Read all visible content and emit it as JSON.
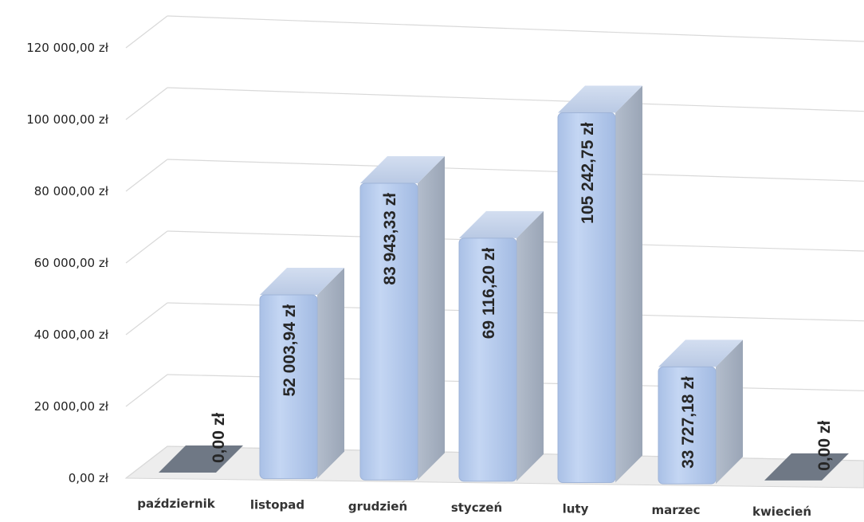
{
  "chart_data": {
    "type": "bar",
    "style": "3d-column",
    "title": "",
    "xlabel": "",
    "ylabel": "",
    "categories": [
      "październik",
      "listopad",
      "grudzień",
      "styczeń",
      "luty",
      "marzec",
      "kwiecień"
    ],
    "values": [
      0,
      52003.94,
      83943.33,
      69116.2,
      105242.75,
      33727.18,
      0
    ],
    "data_labels": [
      "0,00 zł",
      "52 003,94 zł",
      "83 943,33 zł",
      "69 116,20 zł",
      "105 242,75 zł",
      "33 727,18 zł",
      "0,00 zł"
    ],
    "y_ticks": [
      "0,00 zł",
      "20 000,00 zł",
      "40 000,00 zł",
      "60 000,00 zł",
      "80 000,00 zł",
      "100 000,00 zł",
      "120 000,00 zł"
    ],
    "ylim": [
      0,
      120000
    ],
    "grid": true,
    "legend": "none",
    "colors": {
      "bar_front": "#b8cdee",
      "bar_side": "#a9b4c4",
      "bar_top": "#c3d2e8",
      "zero_bar": "#6f7885",
      "gridline": "#d9d9d9"
    }
  }
}
